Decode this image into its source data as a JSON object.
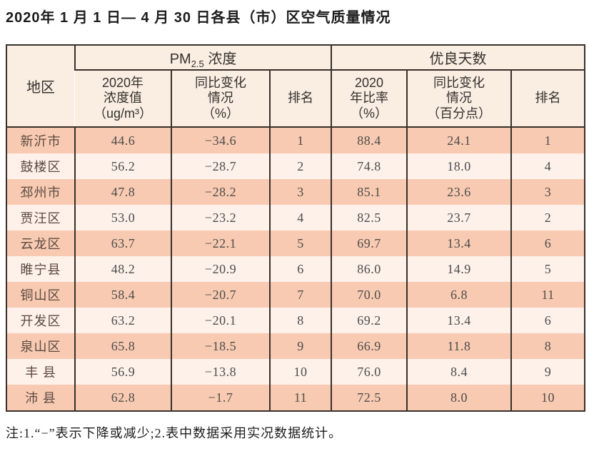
{
  "title": "2020年 1 月 1 日— 4 月 30 日各县（市）区空气质量情况",
  "table": {
    "region_header": "地区",
    "pm_group": {
      "main": "PM",
      "sub": "2.5",
      "rest": " 浓度"
    },
    "good_group_label": "优良天数",
    "sub_headers": {
      "pm_value": "2020年\n浓度值\n（ug/m³）",
      "pm_change": "同比变化\n情况\n（%）",
      "pm_rank": "排名",
      "good_rate": "2020\n年比率\n（%）",
      "good_change": "同比变化\n情况\n（百分点）",
      "good_rank": "排名"
    }
  },
  "rows": [
    {
      "region": "新沂市",
      "pm": "44.6",
      "pm_change": "−34.6",
      "pm_rank": "1",
      "good": "88.4",
      "good_change": "24.1",
      "good_rank": "1"
    },
    {
      "region": "鼓楼区",
      "pm": "56.2",
      "pm_change": "−28.7",
      "pm_rank": "2",
      "good": "74.8",
      "good_change": "18.0",
      "good_rank": "4"
    },
    {
      "region": "邳州市",
      "pm": "47.8",
      "pm_change": "−28.2",
      "pm_rank": "3",
      "good": "85.1",
      "good_change": "23.6",
      "good_rank": "3"
    },
    {
      "region": "贾汪区",
      "pm": "53.0",
      "pm_change": "−23.2",
      "pm_rank": "4",
      "good": "82.5",
      "good_change": "23.7",
      "good_rank": "2"
    },
    {
      "region": "云龙区",
      "pm": "63.7",
      "pm_change": "−22.1",
      "pm_rank": "5",
      "good": "69.7",
      "good_change": "13.4",
      "good_rank": "6"
    },
    {
      "region": "睢宁县",
      "pm": "48.2",
      "pm_change": "−20.9",
      "pm_rank": "6",
      "good": "86.0",
      "good_change": "14.9",
      "good_rank": "5"
    },
    {
      "region": "铜山区",
      "pm": "58.4",
      "pm_change": "−20.7",
      "pm_rank": "7",
      "good": "70.0",
      "good_change": "6.8",
      "good_rank": "11"
    },
    {
      "region": "开发区",
      "pm": "63.2",
      "pm_change": "−20.1",
      "pm_rank": "8",
      "good": "69.2",
      "good_change": "13.4",
      "good_rank": "6"
    },
    {
      "region": "泉山区",
      "pm": "65.8",
      "pm_change": "−18.5",
      "pm_rank": "9",
      "good": "66.9",
      "good_change": "11.8",
      "good_rank": "8"
    },
    {
      "region": "丰 县",
      "pm": "56.9",
      "pm_change": "−13.8",
      "pm_rank": "10",
      "good": "76.0",
      "good_change": "8.4",
      "good_rank": "9"
    },
    {
      "region": "沛 县",
      "pm": "62.8",
      "pm_change": "−1.7",
      "pm_rank": "11",
      "good": "72.5",
      "good_change": "8.0",
      "good_rank": "10"
    }
  ],
  "footnote": "注:1.“−”表示下降或减少;2.表中数据采用实况数据统计。",
  "colors": {
    "row_stripe_dark": "#f8cab1",
    "row_stripe_light": "#fdf1ea",
    "header_background": "#faeee3",
    "border": "#38302a",
    "region_text": "#5b4a42",
    "value_text": "#4c4c4c"
  }
}
